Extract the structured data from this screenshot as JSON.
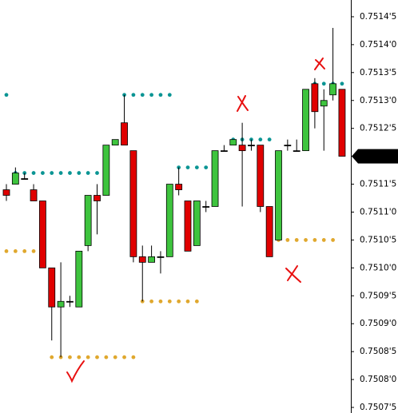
{
  "chart_data": {
    "type": "candlestick",
    "open": [
      0.75114,
      0.75115,
      0.75116,
      0.75114,
      0.75112,
      0.751,
      0.75093,
      0.75094,
      0.75093,
      0.75104,
      0.75113,
      0.75113,
      0.75122,
      0.75126,
      0.75121,
      0.75102,
      0.75101,
      0.75102,
      0.75102,
      0.75115,
      0.75112,
      0.75104,
      0.75111,
      0.75111,
      0.75121,
      0.75122,
      0.75122,
      0.75122,
      0.75122,
      0.75111,
      0.75105,
      0.75122,
      0.75121,
      0.75121,
      0.75133,
      0.75129,
      0.75131,
      0.75132
    ],
    "high": [
      0.75115,
      0.75118,
      0.75117,
      0.75115,
      0.75112,
      0.751,
      0.75101,
      0.75095,
      0.75103,
      0.75113,
      0.75115,
      0.75122,
      0.75123,
      0.75131,
      0.75121,
      0.75104,
      0.75104,
      0.75103,
      0.75115,
      0.75118,
      0.75112,
      0.75112,
      0.75112,
      0.75121,
      0.75122,
      0.75123,
      0.75126,
      0.75123,
      0.75122,
      0.75111,
      0.75121,
      0.75123,
      0.75123,
      0.75132,
      0.75134,
      0.75132,
      0.75143,
      0.75132
    ],
    "low": [
      0.75112,
      0.75115,
      0.75116,
      0.75112,
      0.751,
      0.75087,
      0.75084,
      0.75093,
      0.75093,
      0.75103,
      0.75106,
      0.75113,
      0.75122,
      0.75122,
      0.75101,
      0.75094,
      0.75101,
      0.75099,
      0.75102,
      0.75113,
      0.75103,
      0.75104,
      0.7511,
      0.75111,
      0.75121,
      0.75122,
      0.75111,
      0.75121,
      0.7511,
      0.75102,
      0.75105,
      0.75121,
      0.75121,
      0.75121,
      0.75125,
      0.75121,
      0.7513,
      0.7512
    ],
    "close": [
      0.75113,
      0.75117,
      0.75116,
      0.75112,
      0.751,
      0.75093,
      0.75094,
      0.75094,
      0.75103,
      0.75113,
      0.75112,
      0.75122,
      0.75123,
      0.75122,
      0.75102,
      0.75101,
      0.75102,
      0.75102,
      0.75115,
      0.75114,
      0.75103,
      0.75112,
      0.75111,
      0.75121,
      0.75121,
      0.75123,
      0.75121,
      0.75122,
      0.75111,
      0.75102,
      0.75121,
      0.75122,
      0.75121,
      0.75132,
      0.75128,
      0.7513,
      0.75133,
      0.7512
    ],
    "up_color": "#3ec43e",
    "down_color": "#e00000",
    "levels": [
      {
        "value": 0.75131,
        "color": "#0b9594",
        "from": 0,
        "to": 0
      },
      {
        "value": 0.75103,
        "color": "#e0a82e",
        "from": 0,
        "to": 3
      },
      {
        "value": 0.75117,
        "color": "#0b9594",
        "from": 1,
        "to": 11
      },
      {
        "value": 0.75084,
        "color": "#e0a82e",
        "from": 5,
        "to": 14
      },
      {
        "value": 0.75131,
        "color": "#0b9594",
        "from": 13,
        "to": 18
      },
      {
        "value": 0.75094,
        "color": "#e0a82e",
        "from": 15,
        "to": 21
      },
      {
        "value": 0.75118,
        "color": "#0b9594",
        "from": 19,
        "to": 22
      },
      {
        "value": 0.75123,
        "color": "#0b9594",
        "from": 25,
        "to": 29
      },
      {
        "value": 0.75105,
        "color": "#e0a82e",
        "from": 30,
        "to": 36
      },
      {
        "value": 0.75133,
        "color": "#0b9594",
        "from": 34,
        "to": 37
      }
    ],
    "ylim": [
      0.75074,
      0.75148
    ],
    "yticks": [
      {
        "value": 0.75145,
        "label": "0.7514'5"
      },
      {
        "value": 0.7514,
        "label": "0.7514'0"
      },
      {
        "value": 0.75135,
        "label": "0.7513'5"
      },
      {
        "value": 0.7513,
        "label": "0.7513'0"
      },
      {
        "value": 0.75125,
        "label": "0.7512'5"
      },
      {
        "value": 0.7512,
        "label": "0.7512'0"
      },
      {
        "value": 0.75115,
        "label": "0.7511'5"
      },
      {
        "value": 0.7511,
        "label": "0.7511'0"
      },
      {
        "value": 0.75105,
        "label": "0.7510'5"
      },
      {
        "value": 0.751,
        "label": "0.7510'0"
      },
      {
        "value": 0.75095,
        "label": "0.7509'5"
      },
      {
        "value": 0.7509,
        "label": "0.7509'0"
      },
      {
        "value": 0.75085,
        "label": "0.7508'5"
      },
      {
        "value": 0.7508,
        "label": "0.7508'0"
      },
      {
        "value": 0.75075,
        "label": "0.7507'5"
      }
    ]
  }
}
